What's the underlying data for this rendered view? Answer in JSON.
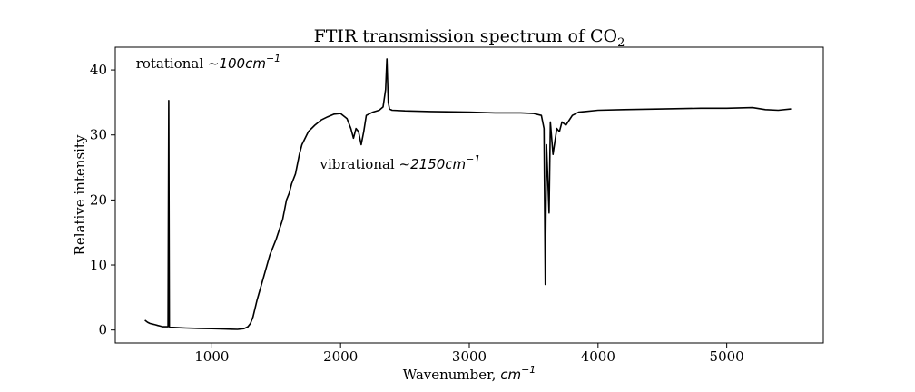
{
  "chart_data": {
    "type": "line",
    "title": "FTIR transmission spectrum of CO",
    "title_subscript": "2",
    "xlabel": "Wavenumber,",
    "xlabel_unit": "cm",
    "xlabel_unit_exp": "−1",
    "ylabel": "Relative intensity",
    "xlim": [
      250,
      5750
    ],
    "ylim": [
      -2,
      43.5
    ],
    "xticks": [
      1000,
      2000,
      3000,
      4000,
      5000
    ],
    "yticks": [
      0,
      10,
      20,
      30,
      40
    ],
    "grid": false,
    "line_color": "#000000",
    "annotations": [
      {
        "text": "rotational",
        "math": "∼100",
        "unit": "cm",
        "exp": "−1",
        "x": 410,
        "y": 40.3
      },
      {
        "text": "vibrational",
        "math": "∼2150",
        "unit": "cm",
        "exp": "−1",
        "x": 1840,
        "y": 24.8
      }
    ],
    "series": [
      {
        "x": [
          480,
          500,
          520,
          540,
          560,
          580,
          600,
          620,
          640,
          650,
          660,
          665,
          670,
          680,
          700,
          750,
          800,
          900,
          1000,
          1100,
          1200,
          1250,
          1280,
          1300,
          1320,
          1350,
          1400,
          1450,
          1500,
          1550,
          1580,
          1600,
          1620,
          1650,
          1680,
          1700,
          1750,
          1800,
          1850,
          1900,
          1950,
          2000,
          2050,
          2080,
          2100,
          2120,
          2140,
          2160,
          2180,
          2200,
          2250,
          2300,
          2330,
          2350,
          2360,
          2370,
          2380,
          2400,
          2500,
          2700,
          3000,
          3200,
          3400,
          3500,
          3560,
          3580,
          3590,
          3600,
          3620,
          3630,
          3650,
          3680,
          3700,
          3720,
          3750,
          3800,
          3850,
          3900,
          4000,
          4200,
          4500,
          4800,
          5000,
          5200,
          5300,
          5400,
          5500
        ],
        "y": [
          1.5,
          1.2,
          1.0,
          0.9,
          0.8,
          0.7,
          0.6,
          0.5,
          0.5,
          0.5,
          0.5,
          35.3,
          0.5,
          0.4,
          0.4,
          0.35,
          0.3,
          0.25,
          0.2,
          0.15,
          0.1,
          0.2,
          0.5,
          1.0,
          2.0,
          4.5,
          8.0,
          11.5,
          14.0,
          17.0,
          20.0,
          21.0,
          22.5,
          24.0,
          27.0,
          28.5,
          30.5,
          31.5,
          32.3,
          32.8,
          33.2,
          33.3,
          32.5,
          31.0,
          29.5,
          31.0,
          30.5,
          28.5,
          30.5,
          33.0,
          33.5,
          33.8,
          34.3,
          37.0,
          41.7,
          35.0,
          34.0,
          33.8,
          33.7,
          33.6,
          33.5,
          33.4,
          33.4,
          33.3,
          33.0,
          31.0,
          7.0,
          28.5,
          18.0,
          32.0,
          27.0,
          31.0,
          30.5,
          32.0,
          31.5,
          33.0,
          33.5,
          33.6,
          33.8,
          33.9,
          34.0,
          34.1,
          34.1,
          34.2,
          33.9,
          33.8,
          34.0
        ]
      }
    ]
  }
}
